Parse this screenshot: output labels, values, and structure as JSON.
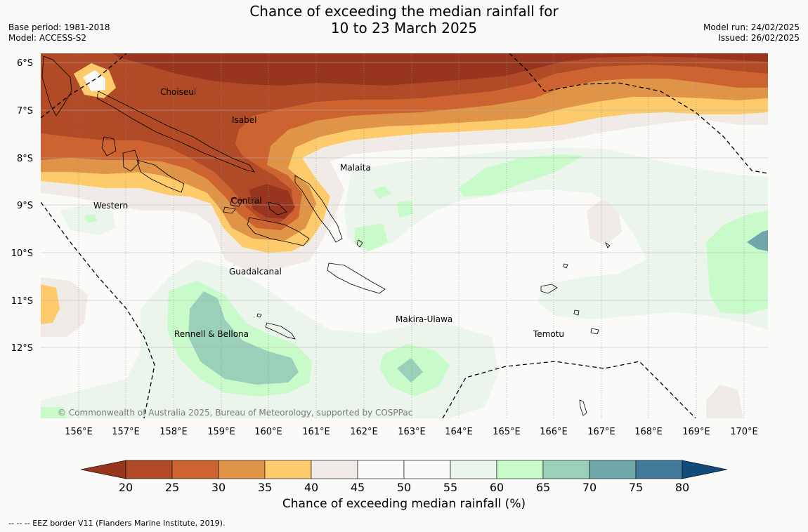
{
  "title_line1": "Chance of exceeding the median rainfall for",
  "title_line2": "10 to 23 March 2025",
  "base_period": "Base period: 1981-2018",
  "model": "Model: ACCESS-S2",
  "model_run": "Model run: 24/02/2025",
  "issued": "Issued: 26/02/2025",
  "copyright": "© Commonwealth of Australia 2025, Bureau of Meteorology, supported by COSPPac",
  "lat_ticks": [
    "6°S",
    "7°S",
    "8°S",
    "9°S",
    "10°S",
    "11°S",
    "12°S"
  ],
  "lon_ticks": [
    "156°E",
    "157°E",
    "158°E",
    "159°E",
    "160°E",
    "161°E",
    "162°E",
    "163°E",
    "164°E",
    "165°E",
    "166°E",
    "167°E",
    "168°E",
    "169°E",
    "170°E"
  ],
  "regions": {
    "choiseul": "Choiseul",
    "isabel": "Isabel",
    "malaita": "Malaita",
    "central": "Central",
    "western": "Western",
    "guadalcanal": "Guadalcanal",
    "rennell": "Rennell & Bellona",
    "makira": "Makira-Ulawa",
    "temotu": "Temotu"
  },
  "colorbar": {
    "title": "Chance of exceeding median rainfall (%)",
    "ticks": [
      "20",
      "25",
      "30",
      "35",
      "40",
      "45",
      "50",
      "55",
      "60",
      "65",
      "70",
      "75",
      "80"
    ],
    "colors": [
      "#97351e",
      "#b04a27",
      "#cc6330",
      "#e09447",
      "#fdcb6b",
      "#f1ebe8",
      "#fafbf9",
      "#fafbf9",
      "#ebf5ec",
      "#c9fbca",
      "#9acfba",
      "#70a7aa",
      "#427a9b",
      "#124a7a"
    ]
  },
  "footnote": "--  --  -- EEZ border V11 (Flanders Marine Institute, 2019)."
}
